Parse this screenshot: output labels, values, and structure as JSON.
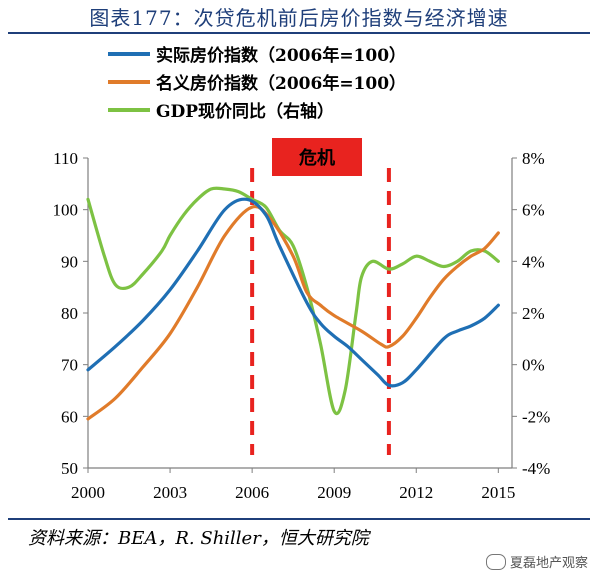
{
  "title": "图表177：次贷危机前后房价指数与经济增速",
  "source": "资料来源：BEA，R. Shiller，恒大研究院",
  "watermark": "夏磊地产观察",
  "chart_data": {
    "type": "line",
    "title": "图表177：次贷危机前后房价指数与经济增速",
    "x_ticks": [
      2000,
      2003,
      2006,
      2009,
      2012,
      2015
    ],
    "xlim": [
      2000,
      2015.5
    ],
    "ylim": [
      50,
      110
    ],
    "y_ticks": [
      50,
      60,
      70,
      80,
      90,
      100,
      110
    ],
    "y2lim": [
      -4,
      8
    ],
    "y2_ticks": [
      "-4%",
      "-2%",
      "0%",
      "2%",
      "4%",
      "6%",
      "8%"
    ],
    "y2_values": [
      -4,
      -2,
      0,
      2,
      4,
      6,
      8
    ],
    "grid": false,
    "legend_position": "top",
    "annotation": {
      "label": "危机",
      "color": "#e8231f"
    },
    "crisis_lines": [
      2006,
      2011
    ],
    "series": [
      {
        "name": "实际房价指数（2006年=100）",
        "axis": "left",
        "color": "#1f6fb4",
        "points": [
          [
            2000,
            69
          ],
          [
            2001,
            73.5
          ],
          [
            2002,
            78.5
          ],
          [
            2003,
            84.5
          ],
          [
            2004,
            92
          ],
          [
            2005,
            100
          ],
          [
            2005.8,
            102
          ],
          [
            2006.5,
            99
          ],
          [
            2007,
            93
          ],
          [
            2008,
            82
          ],
          [
            2008.5,
            78
          ],
          [
            2009,
            75.5
          ],
          [
            2009.5,
            73.5
          ],
          [
            2010,
            71
          ],
          [
            2010.6,
            68
          ],
          [
            2011,
            66
          ],
          [
            2011.5,
            66.5
          ],
          [
            2012,
            69
          ],
          [
            2013,
            75
          ],
          [
            2013.5,
            76.5
          ],
          [
            2014,
            77.5
          ],
          [
            2014.5,
            79
          ],
          [
            2015,
            81.5
          ]
        ]
      },
      {
        "name": "名义房价指数（2006年=100）",
        "axis": "left",
        "color": "#e07b2a",
        "points": [
          [
            2000,
            59.5
          ],
          [
            2001,
            63.5
          ],
          [
            2002,
            69.5
          ],
          [
            2003,
            76
          ],
          [
            2004,
            85
          ],
          [
            2005,
            95
          ],
          [
            2006,
            100.5
          ],
          [
            2006.7,
            98
          ],
          [
            2007.5,
            91
          ],
          [
            2008,
            84
          ],
          [
            2008.5,
            81.5
          ],
          [
            2009,
            79.5
          ],
          [
            2010,
            76.5
          ],
          [
            2010.7,
            74
          ],
          [
            2011,
            73.5
          ],
          [
            2011.5,
            75.5
          ],
          [
            2012,
            79
          ],
          [
            2012.5,
            83
          ],
          [
            2013,
            86.5
          ],
          [
            2013.5,
            89
          ],
          [
            2014,
            91
          ],
          [
            2014.5,
            92.5
          ],
          [
            2015,
            95.5
          ]
        ]
      },
      {
        "name": "GDP现价同比（右轴）",
        "axis": "right",
        "color": "#7dc243",
        "points": [
          [
            2000,
            6.4
          ],
          [
            2000.6,
            4.2
          ],
          [
            2001,
            3.1
          ],
          [
            2001.5,
            3.0
          ],
          [
            2002,
            3.5
          ],
          [
            2002.7,
            4.4
          ],
          [
            2003,
            5.0
          ],
          [
            2003.5,
            5.8
          ],
          [
            2004,
            6.4
          ],
          [
            2004.5,
            6.8
          ],
          [
            2005,
            6.8
          ],
          [
            2005.5,
            6.7
          ],
          [
            2006,
            6.4
          ],
          [
            2006.5,
            6.1
          ],
          [
            2007,
            5.2
          ],
          [
            2007.5,
            4.6
          ],
          [
            2008,
            3.0
          ],
          [
            2008.5,
            0.8
          ],
          [
            2009,
            -1.8
          ],
          [
            2009.4,
            -1.0
          ],
          [
            2009.8,
            2.0
          ],
          [
            2010,
            3.4
          ],
          [
            2010.4,
            4.0
          ],
          [
            2011,
            3.7
          ],
          [
            2011.5,
            3.9
          ],
          [
            2012,
            4.2
          ],
          [
            2012.5,
            4.0
          ],
          [
            2013,
            3.8
          ],
          [
            2013.5,
            4.0
          ],
          [
            2014,
            4.4
          ],
          [
            2014.5,
            4.4
          ],
          [
            2015,
            4.0
          ]
        ]
      }
    ]
  }
}
